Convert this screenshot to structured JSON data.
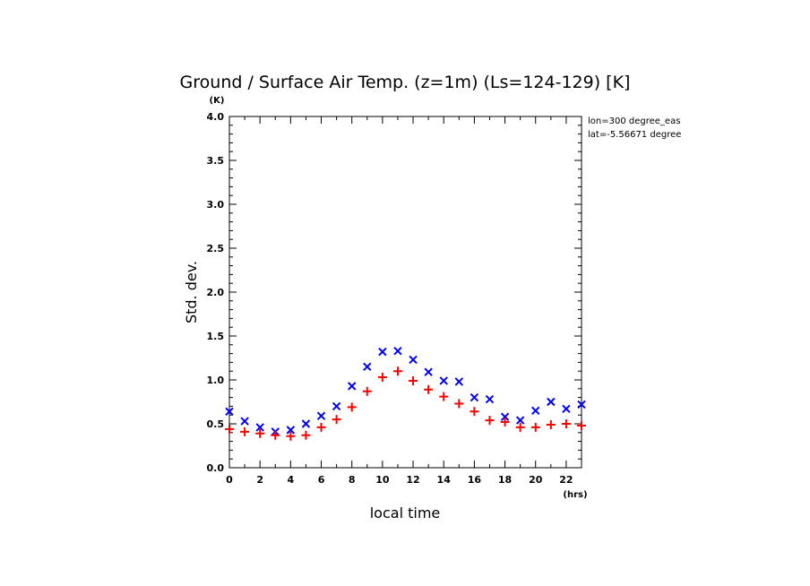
{
  "chart_data": {
    "type": "scatter",
    "title": "Ground / Surface Air Temp. (z=1m) (Ls=124-129) [K]",
    "xlabel": "local time",
    "ylabel": "Std. dev.",
    "x_unit": "(hrs)",
    "y_unit": "(K)",
    "xlim": [
      0,
      23
    ],
    "ylim": [
      0.0,
      4.0
    ],
    "x_ticks": [
      0,
      2,
      4,
      6,
      8,
      10,
      12,
      14,
      16,
      18,
      20,
      22
    ],
    "x_tick_labels": [
      "0",
      "2",
      "4",
      "6",
      "8",
      "10",
      "12",
      "14",
      "16",
      "18",
      "20",
      "22"
    ],
    "y_ticks": [
      0.0,
      0.5,
      1.0,
      1.5,
      2.0,
      2.5,
      3.0,
      3.5,
      4.0
    ],
    "y_tick_labels": [
      "0.0",
      "0.5",
      "1.0",
      "1.5",
      "2.0",
      "2.5",
      "3.0",
      "3.5",
      "4.0"
    ],
    "annotations": [
      "lon=300 degree_eas",
      "lat=-5.56671 degree"
    ],
    "grid": false,
    "x": [
      0,
      1,
      2,
      3,
      4,
      5,
      6,
      7,
      8,
      9,
      10,
      11,
      12,
      13,
      14,
      15,
      16,
      17,
      18,
      19,
      20,
      21,
      22,
      23
    ],
    "series": [
      {
        "marker": "x",
        "color": "#0000ff",
        "values": [
          0.64,
          0.53,
          0.46,
          0.41,
          0.43,
          0.5,
          0.59,
          0.7,
          0.93,
          1.15,
          1.32,
          1.33,
          1.23,
          1.09,
          0.99,
          0.98,
          0.8,
          0.78,
          0.58,
          0.54,
          0.65,
          0.75,
          0.67,
          0.72
        ]
      },
      {
        "marker": "+",
        "color": "#ff0000",
        "values": [
          0.44,
          0.41,
          0.39,
          0.37,
          0.36,
          0.37,
          0.46,
          0.55,
          0.69,
          0.87,
          1.03,
          1.1,
          0.99,
          0.89,
          0.81,
          0.73,
          0.64,
          0.54,
          0.52,
          0.46,
          0.46,
          0.49,
          0.5,
          0.48
        ]
      }
    ]
  }
}
